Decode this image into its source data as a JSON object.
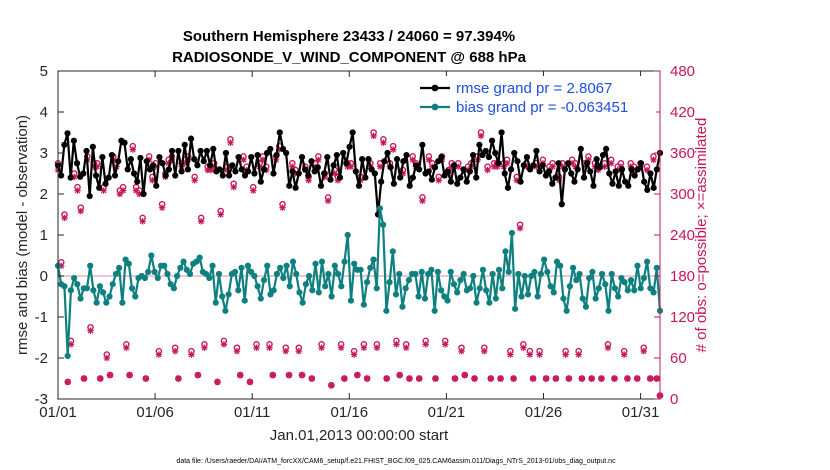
{
  "figure": {
    "title_line1": "Southern Hemisphere 23433 / 24060 = 97.394%",
    "title_line2": "RADIOSONDE_V_WIND_COMPONENT @ 688 hPa",
    "footer": "data file: /Users/raeder/DAI/ATM_forcXX/CAM6_setup/f.e21.FHIST_BGC.f09_025.CAM6assim.011/Diags_NTrS_2013-01/obs_diag_output.nc"
  },
  "colors": {
    "rmse": "#000000",
    "bias": "#0f8080",
    "obs": "#c8165c",
    "zero_line": "#e8b3c2",
    "legend_text": "#1f4fe0"
  },
  "chart_data": {
    "type": "line",
    "title": "Southern Hemisphere 23433 / 24060 = 97.394%\nRADIOSONDE_V_WIND_COMPONENT @ 688 hPa",
    "xlabel": "Jan.01,2013 00:00:00 start",
    "ylabel": "rmse and bias (model - observation)",
    "ylabel_right": "# of obs: o=possible; ×=assimilated",
    "x_unit": "days since Jan.01,2013 00:00:00 (6-hourly steps)",
    "xlim": [
      0,
      31
    ],
    "ylim": [
      -3,
      5
    ],
    "ylim_right": [
      0,
      480
    ],
    "xticks": [
      0,
      5,
      10,
      15,
      20,
      25,
      30
    ],
    "xtick_labels": [
      "01/01",
      "01/06",
      "01/11",
      "01/16",
      "01/21",
      "01/26",
      "01/31"
    ],
    "yticks": [
      -3,
      -2,
      -1,
      0,
      1,
      2,
      3,
      4,
      5
    ],
    "ytick_labels": [
      "-3",
      "-2",
      "-1",
      "0",
      "1",
      "2",
      "3",
      "4",
      "5"
    ],
    "yticks_right": [
      0,
      60,
      120,
      180,
      240,
      300,
      360,
      420,
      480
    ],
    "ytick_labels_right": [
      "0",
      "60",
      "120",
      "180",
      "240",
      "300",
      "360",
      "420",
      "480"
    ],
    "legend": {
      "placement": "top-right",
      "entries": [
        "rmse grand pr = 2.8067",
        "bias grand pr = -0.063451"
      ]
    },
    "series": [
      {
        "name": "rmse grand pr = 2.8067",
        "axis": "left",
        "marker": "filled-circle",
        "color": "#000000",
        "values": [
          2.7,
          2.45,
          3.2,
          3.48,
          2.4,
          3.3,
          2.75,
          2.42,
          2.5,
          3.05,
          1.95,
          3.15,
          2.45,
          2.15,
          2.9,
          2.25,
          2.4,
          2.95,
          2.45,
          2.8,
          3.3,
          3.25,
          2.6,
          2.85,
          2.5,
          2.3,
          2.88,
          2.0,
          2.8,
          2.6,
          2.7,
          2.2,
          2.9,
          2.75,
          2.45,
          2.6,
          3.05,
          2.45,
          3.05,
          2.55,
          3.2,
          2.6,
          3.35,
          2.85,
          2.7,
          3.05,
          2.8,
          3.05,
          2.7,
          3.1,
          2.55,
          2.6,
          2.45,
          3.0,
          2.45,
          2.7,
          2.55,
          2.9,
          2.6,
          2.45,
          2.55,
          2.9,
          2.5,
          2.95,
          2.3,
          2.6,
          3.0,
          3.1,
          2.5,
          2.95,
          3.5,
          3.1,
          3.0,
          2.2,
          2.55,
          2.15,
          2.5,
          2.9,
          2.6,
          2.45,
          2.8,
          2.55,
          2.65,
          2.2,
          2.5,
          2.9,
          2.35,
          2.7,
          2.95,
          2.4,
          3.0,
          2.75,
          3.15,
          3.5,
          2.55,
          2.2,
          2.85,
          2.4,
          2.85,
          2.6,
          2.5,
          1.5,
          2.3,
          2.8,
          3.0,
          2.65,
          2.25,
          2.85,
          2.4,
          2.8,
          2.95,
          2.2,
          2.4,
          2.7,
          2.6,
          3.2,
          2.5,
          2.55,
          2.35,
          2.65,
          2.8,
          2.9,
          2.45,
          2.55,
          2.3,
          2.7,
          2.25,
          2.4,
          2.6,
          2.3,
          2.55,
          2.95,
          2.4,
          3.2,
          2.95,
          3.05,
          2.9,
          3.3,
          3.0,
          2.75,
          3.5,
          2.5,
          2.15,
          2.6,
          3.0,
          2.8,
          2.3,
          2.7,
          2.9,
          2.6,
          2.7,
          3.05,
          2.55,
          2.7,
          2.45,
          2.55,
          2.25,
          2.4,
          2.75,
          1.75,
          2.6,
          2.75,
          2.5,
          2.3,
          2.6,
          3.1,
          2.4,
          2.75,
          2.55,
          2.2,
          2.85,
          2.65,
          2.95,
          3.1,
          2.5,
          2.25,
          2.55,
          2.2,
          2.6,
          2.3,
          2.2,
          2.6,
          2.45,
          2.6,
          2.75,
          2.3,
          2.1,
          2.5,
          2.15,
          2.6,
          3.0
        ],
        "summary": "2.8067"
      },
      {
        "name": "bias grand pr = -0.063451",
        "axis": "left",
        "marker": "filled-circle",
        "color": "#0f8080",
        "values": [
          0.25,
          -0.2,
          -0.25,
          -1.95,
          -0.35,
          -0.05,
          -0.2,
          -0.55,
          -0.3,
          -0.3,
          0.25,
          -0.35,
          -0.65,
          -0.25,
          -0.4,
          -0.65,
          -0.5,
          -0.2,
          0.05,
          0.2,
          -0.65,
          0.4,
          0.3,
          -0.3,
          -0.5,
          -0.05,
          0.0,
          -0.05,
          0.1,
          0.5,
          0.1,
          -0.05,
          0.25,
          0.25,
          0.05,
          -0.2,
          -0.3,
          0.0,
          0.2,
          0.35,
          0.15,
          0.05,
          0.3,
          0.35,
          0.45,
          0.1,
          0.05,
          -0.05,
          0.25,
          -0.65,
          0.05,
          -0.5,
          -0.85,
          -0.45,
          0.05,
          0.1,
          -0.35,
          0.2,
          -0.6,
          0.25,
          0.1,
          0.0,
          -0.25,
          -0.55,
          -0.1,
          0.25,
          -0.45,
          -0.35,
          0.05,
          0.2,
          -0.05,
          0.25,
          -0.25,
          0.35,
          0.05,
          -0.4,
          -0.65,
          -0.2,
          0.0,
          -0.35,
          0.3,
          -0.4,
          0.35,
          -0.25,
          0.05,
          -0.5,
          0.25,
          0.05,
          -0.25,
          0.35,
          1.0,
          -0.6,
          0.3,
          0.15,
          0.15,
          -0.7,
          -0.15,
          0.2,
          0.4,
          -0.3,
          1.65,
          1.25,
          -0.85,
          -0.15,
          0.6,
          -0.45,
          0.05,
          -0.75,
          -0.3,
          -0.1,
          0.05,
          0.05,
          -0.5,
          0.1,
          -0.55,
          0.05,
          0.15,
          -0.85,
          0.1,
          -0.35,
          -0.5,
          -0.6,
          0.1,
          -0.2,
          -0.4,
          -0.1,
          0.05,
          -0.35,
          -0.3,
          0.0,
          -0.65,
          -0.3,
          0.15,
          -0.35,
          -0.65,
          0.05,
          -0.55,
          0.15,
          -0.3,
          0.6,
          0.1,
          1.05,
          -0.8,
          0.05,
          -0.5,
          0.0,
          -0.45,
          0.0,
          0.1,
          -0.5,
          0.05,
          0.4,
          0.1,
          -0.25,
          -0.4,
          0.35,
          0.25,
          -0.55,
          -0.85,
          -0.25,
          0.2,
          -0.1,
          0.05,
          -0.55,
          -0.75,
          -0.05,
          0.1,
          -0.55,
          -0.3,
          0.05,
          -0.2,
          -0.85,
          0.05,
          -0.3,
          -0.5,
          -0.05,
          -0.15,
          -0.35,
          -0.1,
          -0.35,
          0.25,
          -0.3,
          -0.05,
          0.35,
          -0.3,
          -0.4,
          0.2,
          -0.85
        ]
      }
    ],
    "obs_counts": {
      "axis": "right",
      "possible": [
        345,
        200,
        270,
        25,
        85,
        330,
        310,
        280,
        30,
        355,
        105,
        345,
        345,
        30,
        310,
        65,
        35,
        355,
        345,
        305,
        310,
        80,
        35,
        370,
        310,
        305,
        265,
        30,
        355,
        325,
        345,
        70,
        285,
        330,
        350,
        355,
        75,
        30,
        345,
        350,
        355,
        70,
        325,
        35,
        265,
        80,
        340,
        340,
        345,
        25,
        275,
        85,
        340,
        380,
        315,
        75,
        35,
        355,
        340,
        25,
        310,
        80,
        345,
        355,
        340,
        80,
        35,
        355,
        370,
        285,
        75,
        35,
        345,
        335,
        75,
        35,
        340,
        325,
        30,
        345,
        355,
        80,
        330,
        295,
        20,
        335,
        325,
        80,
        30,
        345,
        345,
        70,
        35,
        325,
        80,
        30,
        345,
        390,
        80,
        345,
        380,
        30,
        345,
        370,
        85,
        35,
        335,
        80,
        30,
        355,
        345,
        30,
        295,
        85,
        355,
        345,
        30,
        325,
        355,
        85,
        335,
        345,
        30,
        345,
        75,
        35,
        340,
        345,
        30,
        355,
        390,
        75,
        340,
        30,
        345,
        345,
        30,
        345,
        350,
        70,
        30,
        325,
        255,
        80,
        345,
        70,
        30,
        345,
        70,
        350,
        30,
        340,
        345,
        30,
        325,
        345,
        70,
        30,
        350,
        345,
        70,
        30,
        345,
        355,
        30,
        345,
        340,
        30,
        345,
        80,
        350,
        30,
        340,
        345,
        70,
        30,
        345,
        340,
        30,
        345,
        75,
        340,
        30,
        355,
        30,
        5
      ],
      "assimilated": [
        335,
        195,
        265,
        25,
        80,
        325,
        305,
        275,
        30,
        350,
        100,
        340,
        340,
        30,
        305,
        60,
        35,
        350,
        340,
        300,
        305,
        75,
        35,
        365,
        305,
        300,
        260,
        30,
        350,
        320,
        340,
        65,
        280,
        325,
        345,
        350,
        70,
        30,
        340,
        345,
        350,
        65,
        320,
        35,
        260,
        75,
        335,
        335,
        340,
        25,
        270,
        80,
        335,
        375,
        310,
        70,
        35,
        350,
        335,
        25,
        305,
        75,
        340,
        350,
        335,
        75,
        35,
        350,
        365,
        280,
        70,
        35,
        340,
        330,
        70,
        35,
        335,
        320,
        30,
        340,
        350,
        75,
        325,
        290,
        20,
        330,
        320,
        75,
        30,
        340,
        340,
        65,
        35,
        320,
        75,
        30,
        340,
        385,
        75,
        340,
        375,
        30,
        340,
        365,
        80,
        35,
        330,
        75,
        30,
        350,
        340,
        30,
        290,
        80,
        350,
        340,
        30,
        320,
        350,
        80,
        330,
        340,
        30,
        340,
        70,
        35,
        335,
        340,
        30,
        350,
        385,
        70,
        335,
        30,
        340,
        340,
        30,
        340,
        345,
        65,
        30,
        320,
        250,
        75,
        340,
        65,
        30,
        340,
        65,
        345,
        30,
        335,
        340,
        30,
        320,
        340,
        65,
        30,
        345,
        340,
        65,
        30,
        340,
        350,
        30,
        340,
        335,
        30,
        340,
        75,
        345,
        30,
        335,
        340,
        65,
        30,
        340,
        335,
        30,
        340,
        70,
        335,
        30,
        350,
        30,
        5
      ]
    }
  }
}
